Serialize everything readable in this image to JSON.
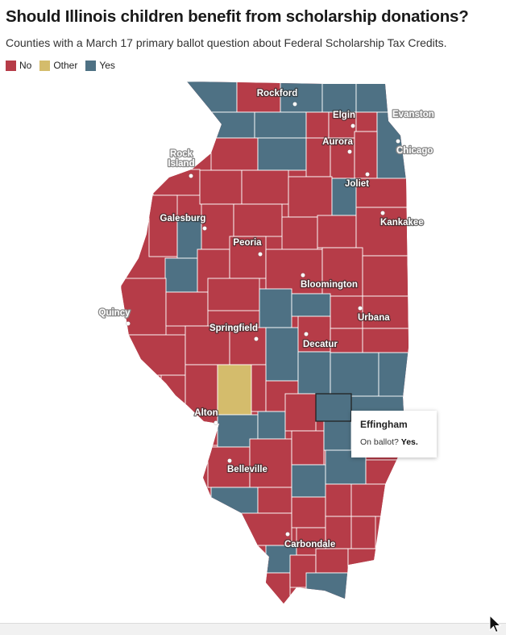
{
  "title": "Should Illinois children benefit from scholarship donations?",
  "subtitle": "Counties with a March 17 primary ballot question about Federal Scholarship Tax Credits.",
  "legend": [
    {
      "label": "No",
      "color": "#b63c48"
    },
    {
      "label": "Other",
      "color": "#d4bc6c"
    },
    {
      "label": "Yes",
      "color": "#4e7184"
    }
  ],
  "colors": {
    "No": "#b63c48",
    "Other": "#d4bc6c",
    "Yes": "#4e7184"
  },
  "cities": [
    {
      "name": "Rockford",
      "style": "inside"
    },
    {
      "name": "Elgin",
      "style": "inside"
    },
    {
      "name": "Evanston",
      "style": "outside"
    },
    {
      "name": "Aurora",
      "style": "inside"
    },
    {
      "name": "Chicago",
      "style": "outside"
    },
    {
      "name": "Rock Island",
      "style": "outside"
    },
    {
      "name": "Joliet",
      "style": "inside"
    },
    {
      "name": "Galesburg",
      "style": "inside"
    },
    {
      "name": "Kankakee",
      "style": "inside"
    },
    {
      "name": "Peoria",
      "style": "inside"
    },
    {
      "name": "Bloomington",
      "style": "inside"
    },
    {
      "name": "Quincy",
      "style": "outside"
    },
    {
      "name": "Urbana",
      "style": "inside"
    },
    {
      "name": "Springfield",
      "style": "inside"
    },
    {
      "name": "Decatur",
      "style": "inside"
    },
    {
      "name": "Alton",
      "style": "inside"
    },
    {
      "name": "Belleville",
      "style": "inside"
    },
    {
      "name": "Carbondale",
      "style": "inside"
    }
  ],
  "tooltip": {
    "county": "Effingham",
    "label": "On ballot?",
    "value": "Yes."
  }
}
